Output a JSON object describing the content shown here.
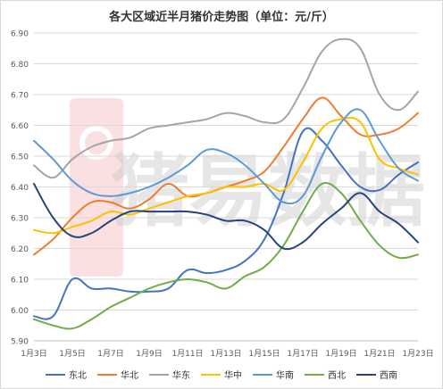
{
  "chart_data": {
    "type": "line",
    "title": "各大区域近半月猪价走势图（单位：元/斤）",
    "xlabel": "",
    "ylabel": "",
    "ylim": [
      5.9,
      6.9
    ],
    "yticks": [
      "5.90",
      "6.00",
      "6.10",
      "6.20",
      "6.30",
      "6.40",
      "6.50",
      "6.60",
      "6.70",
      "6.80",
      "6.90"
    ],
    "x": [
      "1月3日",
      "1月4日",
      "1月5日",
      "1月6日",
      "1月7日",
      "1月8日",
      "1月9日",
      "1月10日",
      "1月11日",
      "1月12日",
      "1月13日",
      "1月14日",
      "1月15日",
      "1月16日",
      "1月17日",
      "1月18日",
      "1月19日",
      "1月20日",
      "1月21日",
      "1月22日",
      "1月23日"
    ],
    "xtick_labels": [
      "1月3日",
      "",
      "1月5日",
      "",
      "1月7日",
      "",
      "1月9日",
      "",
      "1月11日",
      "",
      "1月13日",
      "",
      "1月15日",
      "",
      "1月17日",
      "",
      "1月19日",
      "",
      "1月21日",
      "",
      "1月23日"
    ],
    "grid": true,
    "legend_position": "bottom",
    "watermark": "猪易数据",
    "series": [
      {
        "name": "东北",
        "color": "#4472c4",
        "values": [
          5.98,
          5.98,
          6.1,
          6.07,
          6.07,
          6.06,
          6.06,
          6.07,
          6.13,
          6.12,
          6.13,
          6.16,
          6.23,
          6.38,
          6.58,
          6.55,
          6.47,
          6.4,
          6.39,
          6.44,
          6.48
        ]
      },
      {
        "name": "华北",
        "color": "#ed7d31",
        "values": [
          6.18,
          6.23,
          6.3,
          6.35,
          6.35,
          6.33,
          6.36,
          6.41,
          6.37,
          6.38,
          6.4,
          6.42,
          6.45,
          6.53,
          6.62,
          6.69,
          6.63,
          6.57,
          6.57,
          6.59,
          6.64
        ]
      },
      {
        "name": "华东",
        "color": "#a5a5a5",
        "values": [
          6.47,
          6.43,
          6.49,
          6.53,
          6.55,
          6.56,
          6.59,
          6.6,
          6.61,
          6.62,
          6.64,
          6.63,
          6.61,
          6.62,
          6.72,
          6.84,
          6.88,
          6.85,
          6.7,
          6.65,
          6.71
        ]
      },
      {
        "name": "华中",
        "color": "#ffc000",
        "values": [
          6.26,
          6.25,
          6.27,
          6.29,
          6.32,
          6.31,
          6.33,
          6.35,
          6.37,
          6.38,
          6.4,
          6.4,
          6.41,
          6.39,
          6.48,
          6.59,
          6.62,
          6.61,
          6.49,
          6.46,
          6.44
        ]
      },
      {
        "name": "华南",
        "color": "#5b9bd5",
        "values": [
          6.55,
          6.49,
          6.42,
          6.38,
          6.37,
          6.38,
          6.4,
          6.43,
          6.47,
          6.52,
          6.51,
          6.47,
          6.41,
          6.35,
          6.37,
          6.5,
          6.61,
          6.65,
          6.55,
          6.46,
          6.42
        ]
      },
      {
        "name": "西北",
        "color": "#70ad47",
        "values": [
          5.97,
          5.95,
          5.94,
          5.97,
          6.01,
          6.04,
          6.07,
          6.09,
          6.1,
          6.09,
          6.07,
          6.11,
          6.14,
          6.21,
          6.32,
          6.41,
          6.38,
          6.29,
          6.21,
          6.17,
          6.18
        ]
      },
      {
        "name": "西南",
        "color": "#264478",
        "values": [
          6.41,
          6.3,
          6.24,
          6.25,
          6.29,
          6.32,
          6.32,
          6.32,
          6.32,
          6.31,
          6.29,
          6.29,
          6.26,
          6.2,
          6.22,
          6.28,
          6.33,
          6.38,
          6.32,
          6.28,
          6.22
        ]
      }
    ]
  }
}
